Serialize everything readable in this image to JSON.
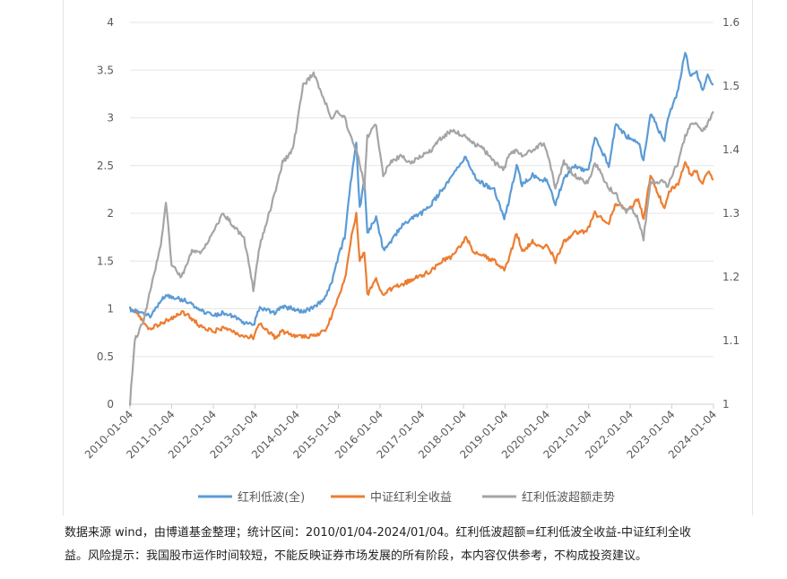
{
  "chart_data": {
    "type": "line",
    "x_start": "2010-01-04",
    "x_end": "2024-01-04",
    "x_tick_labels": [
      "2010-01-04",
      "2011-01-04",
      "2012-01-04",
      "2013-01-04",
      "2014-01-04",
      "2015-01-04",
      "2016-01-04",
      "2017-01-04",
      "2018-01-04",
      "2019-01-04",
      "2020-01-04",
      "2021-01-04",
      "2022-01-04",
      "2023-01-04",
      "2024-01-04"
    ],
    "y_left": {
      "ylim": [
        0,
        4
      ],
      "ticks": [
        "0",
        "0.5",
        "1",
        "1.5",
        "2",
        "2.5",
        "3",
        "3.5",
        "4"
      ]
    },
    "y_right": {
      "ylim": [
        1,
        1.6
      ],
      "ticks": [
        "1",
        "1.1",
        "1.2",
        "1.3",
        "1.4",
        "1.5",
        "1.6"
      ]
    },
    "grid": "horizontal",
    "legend_position": "bottom",
    "series": [
      {
        "name": "红利低波(全)",
        "axis": "left",
        "color": "#5b9bd5",
        "points": [
          [
            "2010-01-04",
            1.0
          ],
          [
            "2010-04-01",
            0.95
          ],
          [
            "2010-07-01",
            0.93
          ],
          [
            "2010-10-01",
            1.08
          ],
          [
            "2010-11-15",
            1.15
          ],
          [
            "2011-01-04",
            1.12
          ],
          [
            "2011-04-01",
            1.1
          ],
          [
            "2011-07-01",
            1.05
          ],
          [
            "2011-10-01",
            0.98
          ],
          [
            "2012-01-04",
            0.92
          ],
          [
            "2012-04-01",
            0.96
          ],
          [
            "2012-07-01",
            0.92
          ],
          [
            "2012-10-01",
            0.86
          ],
          [
            "2012-12-20",
            0.82
          ],
          [
            "2013-02-15",
            1.02
          ],
          [
            "2013-06-25",
            0.95
          ],
          [
            "2013-09-01",
            1.02
          ],
          [
            "2013-12-01",
            1.0
          ],
          [
            "2014-03-01",
            0.97
          ],
          [
            "2014-06-01",
            1.02
          ],
          [
            "2014-09-01",
            1.1
          ],
          [
            "2014-11-01",
            1.25
          ],
          [
            "2015-01-04",
            1.55
          ],
          [
            "2015-03-01",
            1.75
          ],
          [
            "2015-04-20",
            2.3
          ],
          [
            "2015-06-10",
            2.75
          ],
          [
            "2015-07-10",
            2.05
          ],
          [
            "2015-08-20",
            2.35
          ],
          [
            "2015-09-15",
            1.8
          ],
          [
            "2015-12-01",
            1.95
          ],
          [
            "2016-02-01",
            1.62
          ],
          [
            "2016-04-01",
            1.7
          ],
          [
            "2016-07-01",
            1.85
          ],
          [
            "2016-10-01",
            1.95
          ],
          [
            "2017-01-04",
            2.0
          ],
          [
            "2017-04-01",
            2.1
          ],
          [
            "2017-07-01",
            2.25
          ],
          [
            "2017-10-01",
            2.4
          ],
          [
            "2018-01-25",
            2.6
          ],
          [
            "2018-04-01",
            2.4
          ],
          [
            "2018-07-01",
            2.3
          ],
          [
            "2018-10-01",
            2.25
          ],
          [
            "2018-12-28",
            1.95
          ],
          [
            "2019-02-01",
            2.1
          ],
          [
            "2019-04-15",
            2.5
          ],
          [
            "2019-06-01",
            2.3
          ],
          [
            "2019-09-01",
            2.4
          ],
          [
            "2019-12-01",
            2.35
          ],
          [
            "2020-01-04",
            2.35
          ],
          [
            "2020-03-20",
            2.1
          ],
          [
            "2020-06-01",
            2.35
          ],
          [
            "2020-09-01",
            2.5
          ],
          [
            "2020-12-01",
            2.45
          ],
          [
            "2021-01-04",
            2.45
          ],
          [
            "2021-03-01",
            2.8
          ],
          [
            "2021-05-01",
            2.65
          ],
          [
            "2021-07-01",
            2.5
          ],
          [
            "2021-09-01",
            2.95
          ],
          [
            "2021-12-01",
            2.8
          ],
          [
            "2022-01-04",
            2.8
          ],
          [
            "2022-03-15",
            2.75
          ],
          [
            "2022-05-01",
            2.55
          ],
          [
            "2022-07-01",
            3.05
          ],
          [
            "2022-10-31",
            2.75
          ],
          [
            "2022-12-01",
            3.0
          ],
          [
            "2023-01-04",
            3.1
          ],
          [
            "2023-03-01",
            3.3
          ],
          [
            "2023-05-01",
            3.7
          ],
          [
            "2023-06-15",
            3.45
          ],
          [
            "2023-08-01",
            3.5
          ],
          [
            "2023-10-01",
            3.3
          ],
          [
            "2023-11-15",
            3.45
          ],
          [
            "2024-01-04",
            3.35
          ]
        ]
      },
      {
        "name": "中证红利全收益",
        "axis": "left",
        "color": "#ed7d31",
        "points": [
          [
            "2010-01-04",
            1.0
          ],
          [
            "2010-04-01",
            0.92
          ],
          [
            "2010-07-01",
            0.78
          ],
          [
            "2010-10-01",
            0.85
          ],
          [
            "2011-01-04",
            0.9
          ],
          [
            "2011-04-01",
            0.97
          ],
          [
            "2011-07-01",
            0.9
          ],
          [
            "2011-10-01",
            0.8
          ],
          [
            "2012-01-04",
            0.76
          ],
          [
            "2012-04-01",
            0.8
          ],
          [
            "2012-07-01",
            0.75
          ],
          [
            "2012-10-01",
            0.72
          ],
          [
            "2012-12-20",
            0.7
          ],
          [
            "2013-02-15",
            0.85
          ],
          [
            "2013-06-25",
            0.7
          ],
          [
            "2013-09-01",
            0.76
          ],
          [
            "2013-12-01",
            0.72
          ],
          [
            "2014-03-01",
            0.7
          ],
          [
            "2014-06-01",
            0.72
          ],
          [
            "2014-09-01",
            0.76
          ],
          [
            "2014-11-01",
            0.9
          ],
          [
            "2015-01-04",
            1.12
          ],
          [
            "2015-03-01",
            1.3
          ],
          [
            "2015-04-20",
            1.7
          ],
          [
            "2015-06-10",
            2.0
          ],
          [
            "2015-07-10",
            1.5
          ],
          [
            "2015-08-20",
            1.6
          ],
          [
            "2015-09-15",
            1.15
          ],
          [
            "2015-12-01",
            1.3
          ],
          [
            "2016-02-01",
            1.15
          ],
          [
            "2016-04-01",
            1.2
          ],
          [
            "2016-07-01",
            1.25
          ],
          [
            "2016-10-01",
            1.3
          ],
          [
            "2017-01-04",
            1.35
          ],
          [
            "2017-04-01",
            1.4
          ],
          [
            "2017-07-01",
            1.5
          ],
          [
            "2017-10-01",
            1.55
          ],
          [
            "2018-01-25",
            1.75
          ],
          [
            "2018-04-01",
            1.6
          ],
          [
            "2018-07-01",
            1.55
          ],
          [
            "2018-10-01",
            1.5
          ],
          [
            "2018-12-28",
            1.4
          ],
          [
            "2019-02-01",
            1.5
          ],
          [
            "2019-04-15",
            1.8
          ],
          [
            "2019-06-01",
            1.6
          ],
          [
            "2019-09-01",
            1.7
          ],
          [
            "2019-12-01",
            1.65
          ],
          [
            "2020-01-04",
            1.68
          ],
          [
            "2020-03-20",
            1.5
          ],
          [
            "2020-06-01",
            1.7
          ],
          [
            "2020-09-01",
            1.8
          ],
          [
            "2020-12-01",
            1.8
          ],
          [
            "2021-01-04",
            1.85
          ],
          [
            "2021-03-01",
            2.0
          ],
          [
            "2021-05-01",
            1.95
          ],
          [
            "2021-07-01",
            1.9
          ],
          [
            "2021-09-01",
            2.1
          ],
          [
            "2021-12-01",
            2.05
          ],
          [
            "2022-01-04",
            2.05
          ],
          [
            "2022-03-15",
            2.15
          ],
          [
            "2022-05-01",
            1.95
          ],
          [
            "2022-07-01",
            2.4
          ],
          [
            "2022-10-31",
            2.05
          ],
          [
            "2022-12-01",
            2.2
          ],
          [
            "2023-01-04",
            2.25
          ],
          [
            "2023-03-01",
            2.3
          ],
          [
            "2023-05-01",
            2.55
          ],
          [
            "2023-06-15",
            2.4
          ],
          [
            "2023-08-01",
            2.45
          ],
          [
            "2023-10-01",
            2.3
          ],
          [
            "2023-11-15",
            2.45
          ],
          [
            "2024-01-04",
            2.35
          ]
        ]
      },
      {
        "name": "红利低波超额走势",
        "axis": "right",
        "color": "#a5a5a5",
        "points": [
          [
            "2010-01-04",
            1.0
          ],
          [
            "2010-02-15",
            1.1
          ],
          [
            "2010-05-01",
            1.13
          ],
          [
            "2010-07-01",
            1.18
          ],
          [
            "2010-10-01",
            1.25
          ],
          [
            "2010-11-15",
            1.32
          ],
          [
            "2011-01-04",
            1.22
          ],
          [
            "2011-04-01",
            1.2
          ],
          [
            "2011-07-01",
            1.24
          ],
          [
            "2011-10-01",
            1.24
          ],
          [
            "2012-01-04",
            1.27
          ],
          [
            "2012-04-01",
            1.3
          ],
          [
            "2012-07-01",
            1.28
          ],
          [
            "2012-10-01",
            1.26
          ],
          [
            "2012-12-20",
            1.18
          ],
          [
            "2013-02-15",
            1.25
          ],
          [
            "2013-06-25",
            1.33
          ],
          [
            "2013-09-01",
            1.38
          ],
          [
            "2013-12-01",
            1.4
          ],
          [
            "2014-03-01",
            1.5
          ],
          [
            "2014-06-01",
            1.52
          ],
          [
            "2014-09-01",
            1.48
          ],
          [
            "2014-11-01",
            1.45
          ],
          [
            "2015-01-04",
            1.46
          ],
          [
            "2015-03-01",
            1.45
          ],
          [
            "2015-04-20",
            1.42
          ],
          [
            "2015-06-10",
            1.4
          ],
          [
            "2015-07-10",
            1.38
          ],
          [
            "2015-08-20",
            1.34
          ],
          [
            "2015-09-15",
            1.42
          ],
          [
            "2015-12-01",
            1.44
          ],
          [
            "2016-02-01",
            1.36
          ],
          [
            "2016-04-01",
            1.38
          ],
          [
            "2016-07-01",
            1.39
          ],
          [
            "2016-10-01",
            1.38
          ],
          [
            "2017-01-04",
            1.39
          ],
          [
            "2017-04-01",
            1.4
          ],
          [
            "2017-07-01",
            1.42
          ],
          [
            "2017-10-01",
            1.43
          ],
          [
            "2018-01-25",
            1.42
          ],
          [
            "2018-04-01",
            1.41
          ],
          [
            "2018-07-01",
            1.4
          ],
          [
            "2018-10-01",
            1.38
          ],
          [
            "2018-12-28",
            1.37
          ],
          [
            "2019-02-01",
            1.39
          ],
          [
            "2019-04-15",
            1.4
          ],
          [
            "2019-06-01",
            1.39
          ],
          [
            "2019-09-01",
            1.4
          ],
          [
            "2019-12-01",
            1.41
          ],
          [
            "2020-01-04",
            1.4
          ],
          [
            "2020-03-20",
            1.34
          ],
          [
            "2020-06-01",
            1.38
          ],
          [
            "2020-09-01",
            1.36
          ],
          [
            "2020-12-01",
            1.35
          ],
          [
            "2021-01-04",
            1.35
          ],
          [
            "2021-03-01",
            1.38
          ],
          [
            "2021-05-01",
            1.36
          ],
          [
            "2021-07-01",
            1.34
          ],
          [
            "2021-09-01",
            1.33
          ],
          [
            "2021-12-01",
            1.3
          ],
          [
            "2022-01-04",
            1.31
          ],
          [
            "2022-03-15",
            1.29
          ],
          [
            "2022-05-01",
            1.26
          ],
          [
            "2022-07-01",
            1.35
          ],
          [
            "2022-10-31",
            1.35
          ],
          [
            "2022-12-01",
            1.34
          ],
          [
            "2023-01-04",
            1.36
          ],
          [
            "2023-03-01",
            1.38
          ],
          [
            "2023-05-01",
            1.42
          ],
          [
            "2023-06-15",
            1.44
          ],
          [
            "2023-08-01",
            1.44
          ],
          [
            "2023-10-01",
            1.43
          ],
          [
            "2023-11-15",
            1.44
          ],
          [
            "2024-01-04",
            1.46
          ]
        ]
      }
    ]
  },
  "note": {
    "line1": "数据来源 wind，由博道基金整理；统计区间：2010/01/04-2024/01/04。红利低波超额=红利低波全收益-中证红利全收",
    "line2": "益。风险提示：我国股市运作时间较短，不能反映证券市场发展的所有阶段，本内容仅供参考，不构成投资建议。"
  }
}
